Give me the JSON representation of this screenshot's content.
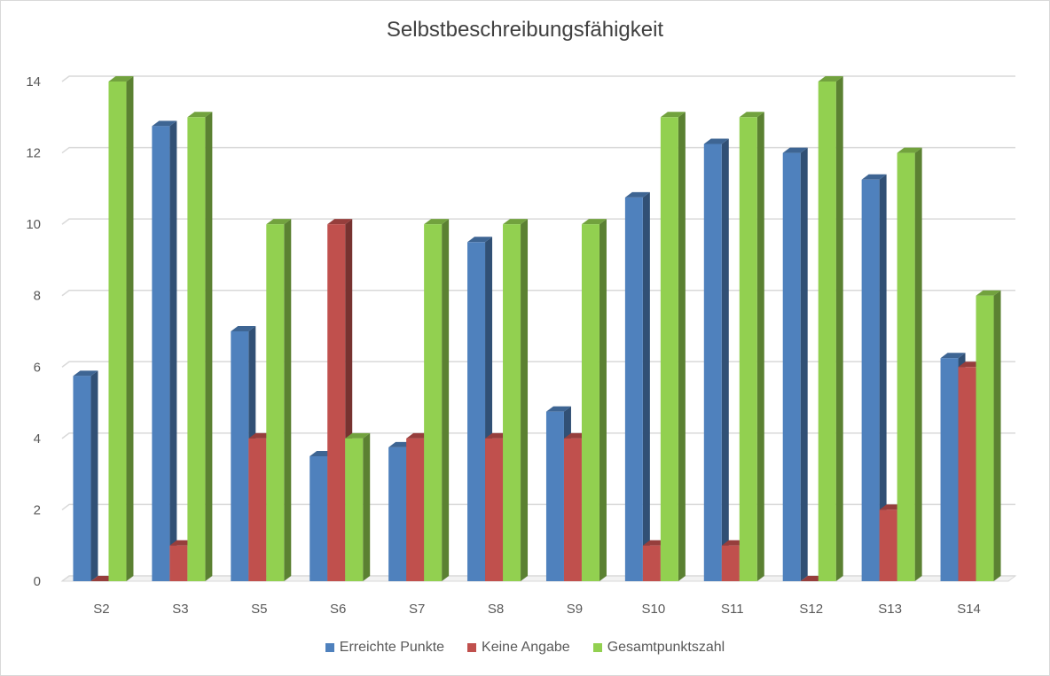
{
  "chart_data": {
    "type": "bar",
    "title": "Selbstbeschreibungsfähigkeit",
    "categories": [
      "S2",
      "S3",
      "S5",
      "S6",
      "S7",
      "S8",
      "S9",
      "S10",
      "S11",
      "S12",
      "S13",
      "S14"
    ],
    "series": [
      {
        "name": "Erreichte Punkte",
        "color": "#4f81bd",
        "values": [
          5.75,
          12.75,
          7,
          3.5,
          3.75,
          9.5,
          4.75,
          10.75,
          12.25,
          12,
          11.25,
          6.25
        ]
      },
      {
        "name": "Keine Angabe",
        "color": "#c0504d",
        "values": [
          0,
          1,
          4,
          10,
          4,
          4,
          4,
          1,
          1,
          0,
          2,
          6
        ]
      },
      {
        "name": "Gesamtpunktszahl",
        "color": "#92d050",
        "values": [
          14,
          13,
          10,
          4,
          10,
          10,
          10,
          13,
          13,
          14,
          12,
          8
        ]
      }
    ],
    "yticks": [
      "0",
      "2",
      "4",
      "6",
      "8",
      "10",
      "12",
      "14"
    ],
    "ylim": [
      0,
      14
    ],
    "grid": true,
    "legend_position": "bottom"
  }
}
